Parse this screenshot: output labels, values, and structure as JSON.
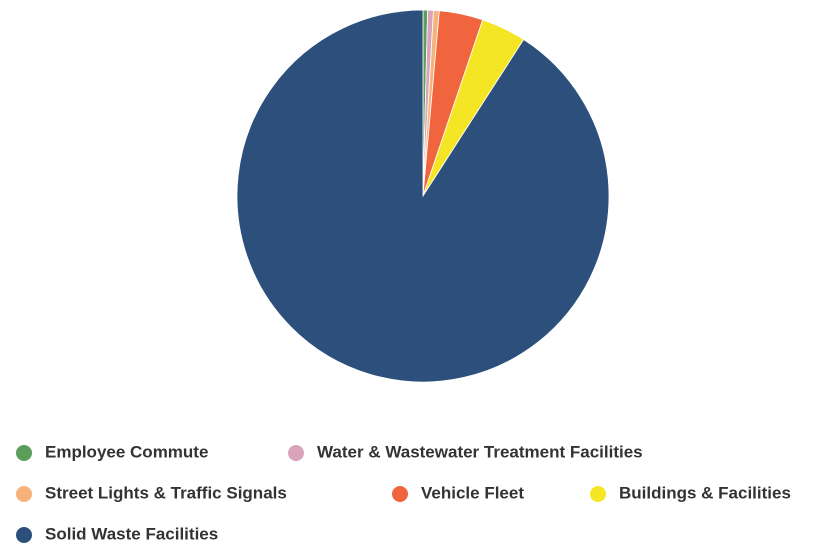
{
  "chart_data": {
    "type": "pie",
    "categories": [
      "Employee Commute",
      "Water & Wastewater Treatment Facilities",
      "Street Lights & Traffic Signals",
      "Vehicle Fleet",
      "Buildings & Facilities",
      "Solid Waste Facilities"
    ],
    "values": [
      0.4,
      0.5,
      0.5,
      3.8,
      3.9,
      90.9
    ],
    "colors": [
      "#5a9e5a",
      "#d9a3ba",
      "#f7b27c",
      "#f0653d",
      "#f5e625",
      "#2c4f7c"
    ],
    "legend": "bottom"
  }
}
